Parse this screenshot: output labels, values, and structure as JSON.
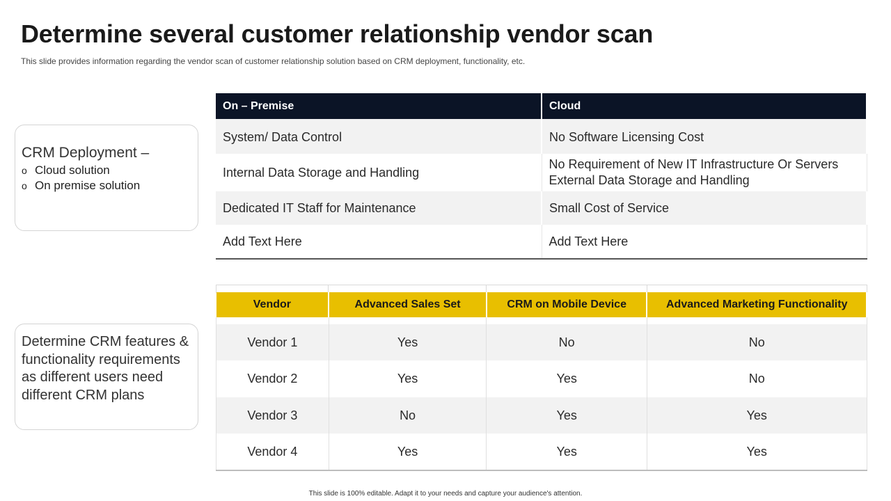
{
  "slide": {
    "title": "Determine several customer relationship vendor scan",
    "subtitle": "This slide provides  information  regarding  the vendor  scan of customer relationship solution based on CRM deployment, functionality, etc.",
    "footer": "This slide is 100% editable.  Adapt it to your needs and capture your audience's attention."
  },
  "deployment_box": {
    "heading": "CRM Deployment –",
    "bullet_glyph": "o",
    "bullets": [
      "Cloud solution",
      "On premise solution"
    ]
  },
  "features_box": {
    "text": "Determine CRM features & functionality requirements as different users need different CRM plans"
  },
  "deployment_table": {
    "headers": [
      "On – Premise",
      "Cloud"
    ],
    "rows": [
      [
        "System/ Data Control",
        "No Software Licensing Cost"
      ],
      [
        "Internal Data Storage and Handling",
        "No Requirement of New IT Infrastructure Or Servers External Data Storage and Handling"
      ],
      [
        "Dedicated IT Staff for Maintenance",
        "Small Cost of Service"
      ],
      [
        "Add Text Here",
        "Add Text Here"
      ]
    ]
  },
  "vendor_table": {
    "headers": [
      "Vendor",
      "Advanced Sales Set",
      "CRM on Mobile Device",
      "Advanced Marketing Functionality"
    ],
    "rows": [
      [
        "Vendor 1",
        "Yes",
        "No",
        "No"
      ],
      [
        "Vendor 2",
        "Yes",
        "Yes",
        "No"
      ],
      [
        "Vendor 3",
        "No",
        "Yes",
        "Yes"
      ],
      [
        "Vendor 4",
        "Yes",
        "Yes",
        "Yes"
      ]
    ]
  },
  "colors": {
    "dark_header": "#0b1426",
    "yellow_header": "#e8bf00",
    "row_alt": "#f2f2f2"
  }
}
